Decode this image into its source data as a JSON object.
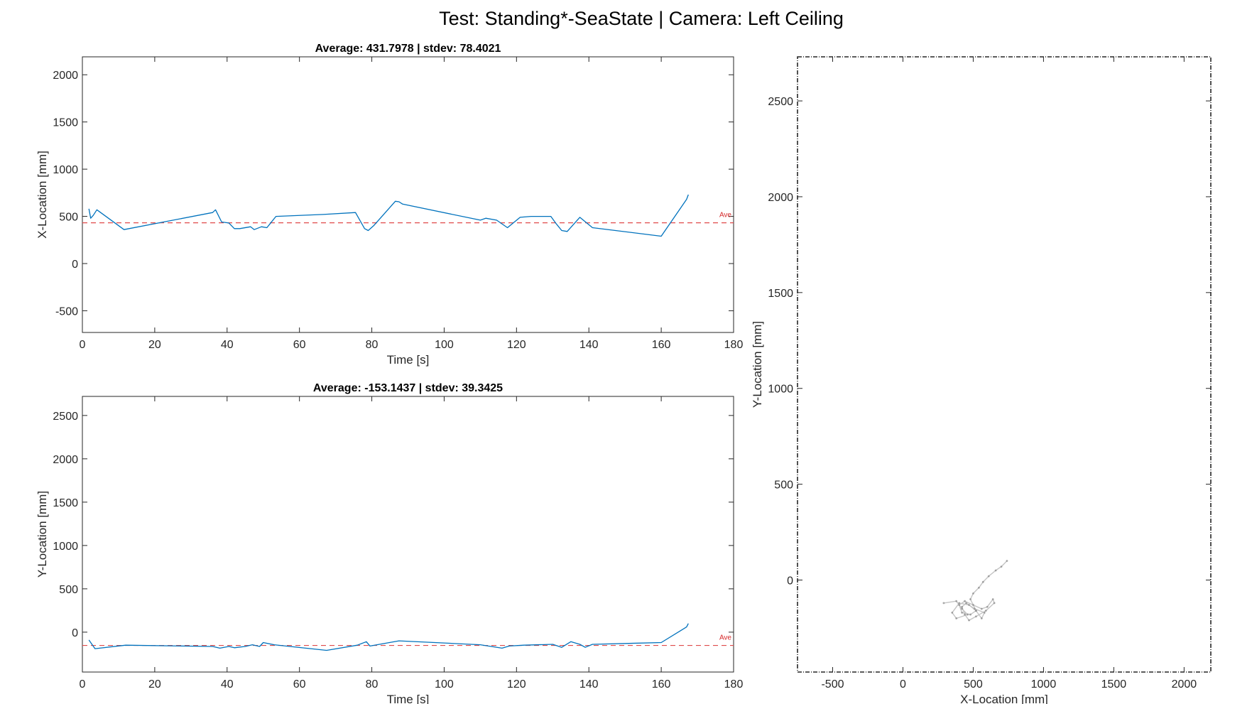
{
  "figure_title": "Test: Standing*-SeaState  |  Camera: Left Ceiling",
  "colors": {
    "trace": "#0072BD",
    "average": "#D95319",
    "average_line": "#e04b4b",
    "trajectory": "#b0b0b0"
  },
  "chart_data": [
    {
      "type": "line",
      "title": "Average: 431.7978  |  stdev: 78.4021",
      "xlabel": "Time [s]",
      "ylabel": "X-Location [mm]",
      "xlim": [
        0,
        180
      ],
      "ylim": [
        -730,
        2190
      ],
      "xticks": [
        0,
        20,
        40,
        60,
        80,
        100,
        120,
        140,
        160,
        180
      ],
      "yticks": [
        -500,
        0,
        500,
        1000,
        1500,
        2000
      ],
      "average": 431.7978,
      "average_label": "Ave",
      "grid": false,
      "series": [
        {
          "x": [
            1.8,
            2.3,
            3.0,
            4.0,
            11.5,
            36.0,
            36.8,
            38.5,
            40.5,
            42.0,
            43.5,
            46.5,
            47.5,
            49.5,
            51.0,
            53.5,
            66.5,
            75.5,
            78.0,
            79.0,
            80.5,
            86.5,
            87.5,
            88.5,
            110.0,
            111.5,
            114.5,
            117.5,
            121.0,
            124.0,
            129.5,
            131.0,
            132.5,
            134.0,
            137.5,
            141.0,
            160.0,
            167.0,
            167.5
          ],
          "y": [
            580,
            480,
            510,
            570,
            360,
            540,
            570,
            440,
            430,
            370,
            370,
            390,
            360,
            390,
            380,
            500,
            520,
            540,
            370,
            350,
            400,
            660,
            655,
            630,
            460,
            480,
            460,
            380,
            490,
            500,
            500,
            420,
            350,
            340,
            490,
            380,
            290,
            680,
            730
          ]
        }
      ]
    },
    {
      "type": "line",
      "title": "Average: -153.1437  |  stdev: 39.3425",
      "xlabel": "Time [s]",
      "ylabel": "Y-Location [mm]",
      "xlim": [
        0,
        180
      ],
      "ylim": [
        -460,
        2720
      ],
      "xticks": [
        0,
        20,
        40,
        60,
        80,
        100,
        120,
        140,
        160,
        180
      ],
      "yticks": [
        0,
        500,
        1000,
        1500,
        2000,
        2500
      ],
      "average": -153.1437,
      "average_label": "Ave",
      "grid": false,
      "series": [
        {
          "x": [
            1.8,
            3.5,
            12.0,
            36.0,
            38.0,
            40.5,
            42.0,
            45.0,
            47.0,
            49.0,
            50.0,
            53.0,
            67.5,
            76.0,
            78.5,
            79.5,
            87.5,
            110.0,
            116.0,
            118.0,
            122.0,
            130.0,
            132.5,
            135.0,
            137.5,
            139.0,
            141.0,
            160.0,
            167.0,
            167.5
          ],
          "y": [
            -90,
            -190,
            -150,
            -165,
            -185,
            -165,
            -180,
            -165,
            -145,
            -165,
            -120,
            -145,
            -210,
            -150,
            -110,
            -160,
            -100,
            -145,
            -185,
            -160,
            -150,
            -140,
            -175,
            -110,
            -140,
            -175,
            -140,
            -120,
            60,
            100
          ]
        }
      ]
    },
    {
      "type": "scatter",
      "title": "",
      "xlabel": "X-Location [mm]",
      "ylabel": "Y-Location [mm]",
      "xlim": [
        -750,
        2190
      ],
      "ylim": [
        -480,
        2730
      ],
      "xticks": [
        -500,
        0,
        500,
        1000,
        1500,
        2000
      ],
      "yticks": [
        0,
        500,
        1000,
        1500,
        2000,
        2500
      ],
      "grid": false,
      "series": [
        {
          "x": [
            290,
            380,
            420,
            460,
            380,
            350,
            400,
            470,
            520,
            480,
            420,
            400,
            440,
            500,
            560,
            600,
            640,
            650,
            590,
            520,
            470,
            440,
            420,
            450,
            510,
            580,
            560,
            520,
            480,
            500,
            540,
            570,
            610,
            660,
            700,
            740
          ],
          "y": [
            -120,
            -110,
            -150,
            -180,
            -200,
            -170,
            -120,
            -130,
            -160,
            -180,
            -170,
            -130,
            -110,
            -130,
            -150,
            -140,
            -100,
            -120,
            -160,
            -190,
            -210,
            -180,
            -140,
            -120,
            -150,
            -170,
            -200,
            -160,
            -100,
            -70,
            -40,
            -10,
            20,
            50,
            70,
            100
          ]
        }
      ]
    }
  ]
}
